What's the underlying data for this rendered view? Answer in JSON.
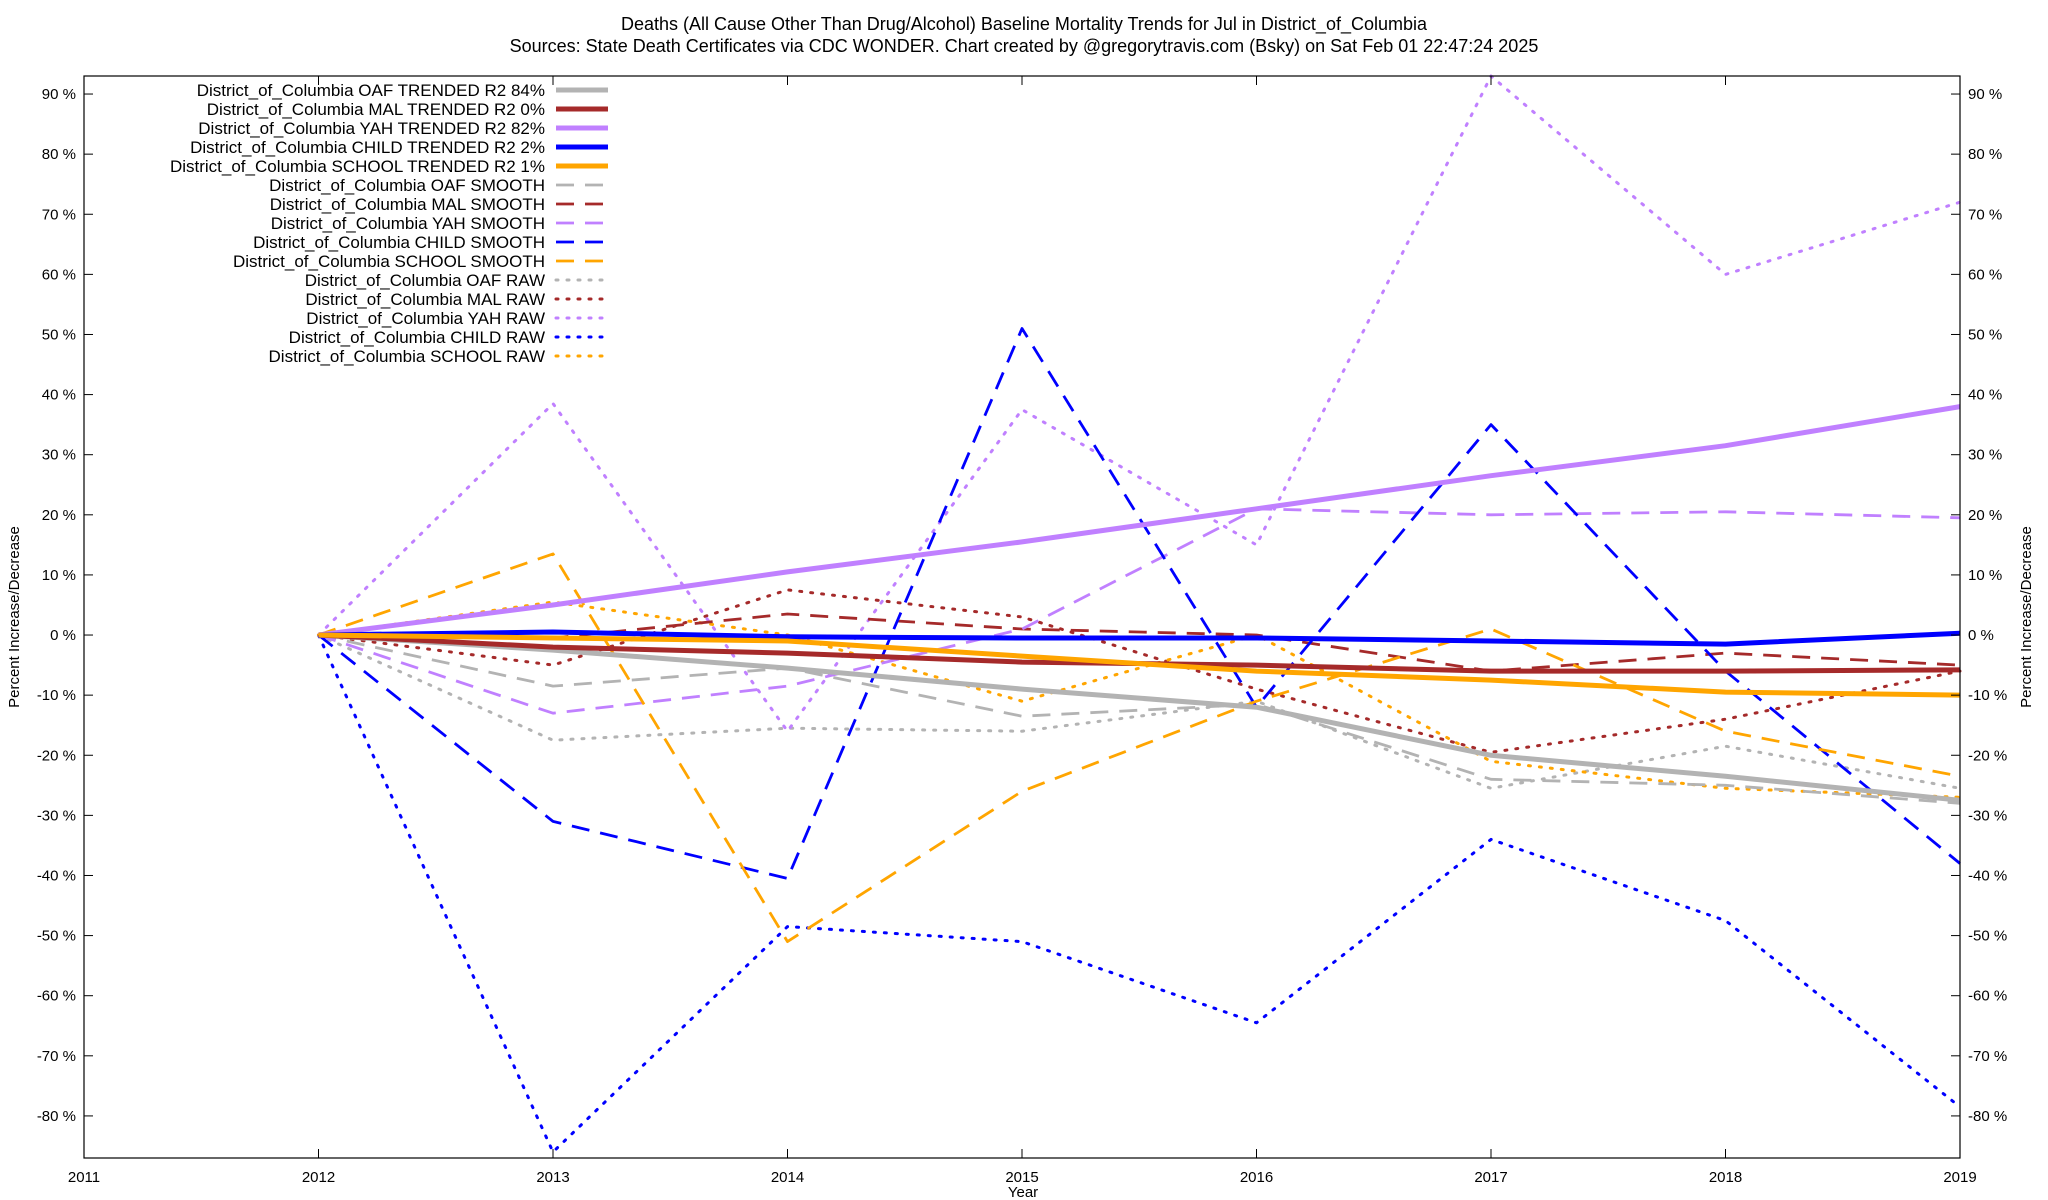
{
  "chart_data": {
    "type": "line",
    "title_line1": "Deaths (All Cause Other Than Drug/Alcohol)  Baseline Mortality Trends for Jul in District_of_Columbia",
    "title_line2": "Sources: State Death Certificates via CDC WONDER.              Chart created by @gregorytravis.com (Bsky) on Sat Feb 01 22:47:24 2025",
    "xlabel": "Year",
    "ylabel": "Percent Increase/Decrease",
    "xlim": [
      2011,
      2019
    ],
    "ylim": [
      -87,
      93
    ],
    "x_ticks": [
      2011,
      2012,
      2013,
      2014,
      2015,
      2016,
      2017,
      2018,
      2019
    ],
    "x_tick_labels": [
      "2011",
      "2012",
      "2013",
      "2014",
      "2015",
      "2016",
      "2017",
      "2018",
      "2019"
    ],
    "y_ticks": [
      90,
      80,
      70,
      60,
      50,
      40,
      30,
      20,
      10,
      0,
      -10,
      -20,
      -30,
      -40,
      -50,
      -60,
      -70,
      -80
    ],
    "y_tick_labels": [
      "90 %",
      "80 %",
      "70 %",
      "60 %",
      "50 %",
      "40 %",
      "30 %",
      "20 %",
      "10 %",
      "0 %",
      "-10 %",
      "-20 %",
      "-30 %",
      "-40 %",
      "-50 %",
      "-60 %",
      "-70 %",
      "-80 %"
    ],
    "grid": false,
    "legend_position": "top-left",
    "x": [
      2012,
      2013,
      2014,
      2015,
      2016,
      2017,
      2018,
      2019
    ],
    "series": [
      {
        "name": "District_of_Columbia OAF TRENDED R2  84%",
        "style": "trended",
        "color": "#b3b3b3",
        "values": [
          0,
          -2.5,
          -5.5,
          -9,
          -12,
          -20,
          -23.5,
          -27.5
        ]
      },
      {
        "name": "District_of_Columbia MAL TRENDED R2   0%",
        "style": "trended",
        "color": "#a52a2a",
        "values": [
          0,
          -2,
          -3,
          -4.5,
          -5,
          -6,
          -6,
          -5.8
        ]
      },
      {
        "name": "District_of_Columbia YAH TRENDED R2  82%",
        "style": "trended",
        "color": "#c080ff",
        "values": [
          0,
          5,
          10.5,
          15.5,
          21,
          26.5,
          31.5,
          38
        ]
      },
      {
        "name": "District_of_Columbia CHILD TRENDED R2   2%",
        "style": "trended",
        "color": "#0000ff",
        "values": [
          0,
          0.5,
          -0.3,
          -0.5,
          -0.5,
          -1,
          -1.5,
          0.3
        ]
      },
      {
        "name": "District_of_Columbia SCHOOL TRENDED R2   1%",
        "style": "trended",
        "color": "#ffa500",
        "values": [
          0,
          -0.5,
          -1,
          -3.5,
          -6,
          -7.5,
          -9.5,
          -10
        ]
      },
      {
        "name": "District_of_Columbia OAF SMOOTH",
        "style": "smooth",
        "color": "#b3b3b3",
        "values": [
          0,
          -8.5,
          -5.5,
          -13.5,
          -11.5,
          -24,
          -25,
          -28
        ]
      },
      {
        "name": "District_of_Columbia MAL SMOOTH",
        "style": "smooth",
        "color": "#a52a2a",
        "values": [
          0,
          -0.5,
          3.5,
          1,
          0,
          -6,
          -3,
          -5
        ]
      },
      {
        "name": "District_of_Columbia YAH SMOOTH",
        "style": "smooth",
        "color": "#c080ff",
        "values": [
          0,
          -13,
          -8.5,
          1,
          21,
          20,
          20.5,
          19.5
        ]
      },
      {
        "name": "District_of_Columbia CHILD SMOOTH",
        "style": "smooth",
        "color": "#0000ff",
        "values": [
          0,
          -31,
          -40.5,
          51,
          -12,
          35,
          -6,
          -38
        ]
      },
      {
        "name": "District_of_Columbia SCHOOL SMOOTH",
        "style": "smooth",
        "color": "#ffa500",
        "values": [
          0,
          13.5,
          -51,
          -26,
          -11,
          1,
          -16,
          -23.5
        ]
      },
      {
        "name": "District_of_Columbia OAF RAW",
        "style": "raw",
        "color": "#b3b3b3",
        "values": [
          0,
          -17.5,
          -15.5,
          -16,
          -11,
          -25.5,
          -18.5,
          -25.5
        ]
      },
      {
        "name": "District_of_Columbia MAL RAW",
        "style": "raw",
        "color": "#a52a2a",
        "values": [
          0,
          -5,
          7.5,
          3,
          -9,
          -19.5,
          -14,
          -6
        ]
      },
      {
        "name": "District_of_Columbia YAH RAW",
        "style": "raw",
        "color": "#c080ff",
        "values": [
          0,
          38.5,
          -16,
          37.5,
          15,
          93,
          60,
          72
        ]
      },
      {
        "name": "District_of_Columbia CHILD RAW",
        "style": "raw",
        "color": "#0000ff",
        "values": [
          0,
          -86,
          -48.5,
          -51,
          -64.5,
          -34,
          -47.5,
          -78.5
        ]
      },
      {
        "name": "District_of_Columbia SCHOOL RAW",
        "style": "raw",
        "color": "#ffa500",
        "values": [
          0,
          5.5,
          0,
          -11,
          0,
          -21,
          -25.5,
          -27
        ]
      }
    ]
  }
}
